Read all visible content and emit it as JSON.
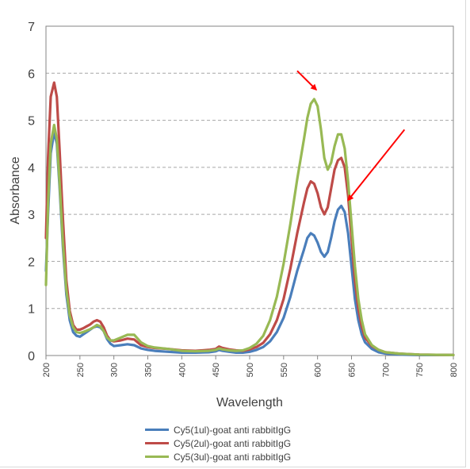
{
  "chart_data": {
    "type": "line",
    "title": "",
    "xlabel": "Wavelength",
    "ylabel": "Absorbance",
    "xlim": [
      200,
      800
    ],
    "ylim": [
      0,
      7
    ],
    "xticks": [
      200,
      250,
      300,
      350,
      400,
      450,
      500,
      550,
      600,
      650,
      700,
      750,
      800
    ],
    "yticks": [
      0,
      1,
      2,
      3,
      4,
      5,
      6,
      7
    ],
    "grid": "horizontal-dashed",
    "legend_position": "bottom",
    "series": [
      {
        "name": "Cy5(1ul)-goat anti rabbitIgG",
        "color": "#4a7ebb",
        "points": [
          [
            200,
            1.8
          ],
          [
            203,
            3.0
          ],
          [
            207,
            4.3
          ],
          [
            212,
            4.75
          ],
          [
            216,
            4.5
          ],
          [
            220,
            3.6
          ],
          [
            225,
            2.3
          ],
          [
            230,
            1.3
          ],
          [
            235,
            0.75
          ],
          [
            240,
            0.5
          ],
          [
            245,
            0.42
          ],
          [
            250,
            0.4
          ],
          [
            255,
            0.45
          ],
          [
            260,
            0.5
          ],
          [
            265,
            0.55
          ],
          [
            270,
            0.6
          ],
          [
            275,
            0.62
          ],
          [
            280,
            0.6
          ],
          [
            285,
            0.52
          ],
          [
            290,
            0.35
          ],
          [
            295,
            0.25
          ],
          [
            300,
            0.2
          ],
          [
            310,
            0.22
          ],
          [
            320,
            0.24
          ],
          [
            330,
            0.22
          ],
          [
            340,
            0.15
          ],
          [
            350,
            0.12
          ],
          [
            360,
            0.1
          ],
          [
            380,
            0.08
          ],
          [
            400,
            0.06
          ],
          [
            420,
            0.06
          ],
          [
            440,
            0.07
          ],
          [
            450,
            0.09
          ],
          [
            455,
            0.12
          ],
          [
            460,
            0.1
          ],
          [
            470,
            0.08
          ],
          [
            480,
            0.06
          ],
          [
            490,
            0.06
          ],
          [
            500,
            0.08
          ],
          [
            510,
            0.12
          ],
          [
            520,
            0.18
          ],
          [
            530,
            0.3
          ],
          [
            540,
            0.5
          ],
          [
            550,
            0.8
          ],
          [
            560,
            1.25
          ],
          [
            570,
            1.8
          ],
          [
            580,
            2.25
          ],
          [
            585,
            2.5
          ],
          [
            590,
            2.6
          ],
          [
            595,
            2.55
          ],
          [
            600,
            2.4
          ],
          [
            605,
            2.2
          ],
          [
            610,
            2.1
          ],
          [
            615,
            2.2
          ],
          [
            620,
            2.5
          ],
          [
            625,
            2.85
          ],
          [
            630,
            3.1
          ],
          [
            635,
            3.18
          ],
          [
            640,
            3.05
          ],
          [
            645,
            2.6
          ],
          [
            650,
            1.9
          ],
          [
            655,
            1.2
          ],
          [
            660,
            0.75
          ],
          [
            665,
            0.45
          ],
          [
            670,
            0.28
          ],
          [
            680,
            0.14
          ],
          [
            690,
            0.07
          ],
          [
            700,
            0.04
          ],
          [
            720,
            0.02
          ],
          [
            750,
            0.01
          ],
          [
            800,
            0.01
          ]
        ]
      },
      {
        "name": "Cy5(2ul)-goat anti rabbitIgG",
        "color": "#be4b48",
        "points": [
          [
            200,
            2.5
          ],
          [
            203,
            4.2
          ],
          [
            207,
            5.5
          ],
          [
            212,
            5.8
          ],
          [
            216,
            5.5
          ],
          [
            220,
            4.4
          ],
          [
            225,
            2.9
          ],
          [
            230,
            1.6
          ],
          [
            235,
            0.95
          ],
          [
            240,
            0.65
          ],
          [
            245,
            0.55
          ],
          [
            250,
            0.55
          ],
          [
            255,
            0.58
          ],
          [
            260,
            0.62
          ],
          [
            265,
            0.66
          ],
          [
            270,
            0.72
          ],
          [
            275,
            0.75
          ],
          [
            280,
            0.72
          ],
          [
            285,
            0.6
          ],
          [
            290,
            0.42
          ],
          [
            295,
            0.32
          ],
          [
            300,
            0.3
          ],
          [
            310,
            0.32
          ],
          [
            320,
            0.36
          ],
          [
            330,
            0.34
          ],
          [
            340,
            0.22
          ],
          [
            350,
            0.18
          ],
          [
            360,
            0.16
          ],
          [
            380,
            0.14
          ],
          [
            400,
            0.11
          ],
          [
            420,
            0.1
          ],
          [
            440,
            0.12
          ],
          [
            450,
            0.14
          ],
          [
            455,
            0.19
          ],
          [
            460,
            0.16
          ],
          [
            470,
            0.13
          ],
          [
            480,
            0.11
          ],
          [
            490,
            0.1
          ],
          [
            500,
            0.13
          ],
          [
            510,
            0.18
          ],
          [
            520,
            0.27
          ],
          [
            530,
            0.45
          ],
          [
            540,
            0.75
          ],
          [
            550,
            1.2
          ],
          [
            560,
            1.85
          ],
          [
            570,
            2.6
          ],
          [
            580,
            3.25
          ],
          [
            585,
            3.55
          ],
          [
            590,
            3.7
          ],
          [
            595,
            3.65
          ],
          [
            600,
            3.45
          ],
          [
            605,
            3.15
          ],
          [
            610,
            3.0
          ],
          [
            615,
            3.15
          ],
          [
            620,
            3.55
          ],
          [
            625,
            3.95
          ],
          [
            630,
            4.15
          ],
          [
            635,
            4.2
          ],
          [
            640,
            4.0
          ],
          [
            645,
            3.4
          ],
          [
            650,
            2.5
          ],
          [
            655,
            1.6
          ],
          [
            660,
            1.0
          ],
          [
            665,
            0.62
          ],
          [
            670,
            0.38
          ],
          [
            680,
            0.2
          ],
          [
            690,
            0.12
          ],
          [
            700,
            0.07
          ],
          [
            720,
            0.04
          ],
          [
            750,
            0.02
          ],
          [
            800,
            0.01
          ]
        ]
      },
      {
        "name": "Cy5(3ul)-goat anti rabbitIgG",
        "color": "#98b954",
        "points": [
          [
            200,
            1.5
          ],
          [
            203,
            3.2
          ],
          [
            207,
            4.5
          ],
          [
            212,
            4.9
          ],
          [
            216,
            4.6
          ],
          [
            220,
            3.7
          ],
          [
            225,
            2.4
          ],
          [
            230,
            1.4
          ],
          [
            235,
            0.85
          ],
          [
            240,
            0.6
          ],
          [
            245,
            0.5
          ],
          [
            250,
            0.48
          ],
          [
            255,
            0.5
          ],
          [
            260,
            0.53
          ],
          [
            265,
            0.56
          ],
          [
            270,
            0.6
          ],
          [
            275,
            0.65
          ],
          [
            280,
            0.62
          ],
          [
            285,
            0.52
          ],
          [
            290,
            0.38
          ],
          [
            295,
            0.32
          ],
          [
            300,
            0.32
          ],
          [
            310,
            0.38
          ],
          [
            320,
            0.44
          ],
          [
            330,
            0.44
          ],
          [
            340,
            0.28
          ],
          [
            350,
            0.2
          ],
          [
            360,
            0.17
          ],
          [
            380,
            0.14
          ],
          [
            400,
            0.1
          ],
          [
            420,
            0.09
          ],
          [
            440,
            0.1
          ],
          [
            450,
            0.12
          ],
          [
            455,
            0.15
          ],
          [
            460,
            0.13
          ],
          [
            470,
            0.11
          ],
          [
            480,
            0.1
          ],
          [
            490,
            0.11
          ],
          [
            500,
            0.16
          ],
          [
            510,
            0.25
          ],
          [
            520,
            0.42
          ],
          [
            530,
            0.75
          ],
          [
            540,
            1.25
          ],
          [
            550,
            1.95
          ],
          [
            560,
            2.8
          ],
          [
            570,
            3.75
          ],
          [
            580,
            4.6
          ],
          [
            585,
            5.05
          ],
          [
            590,
            5.35
          ],
          [
            595,
            5.45
          ],
          [
            600,
            5.3
          ],
          [
            605,
            4.8
          ],
          [
            610,
            4.2
          ],
          [
            615,
            3.95
          ],
          [
            620,
            4.1
          ],
          [
            625,
            4.45
          ],
          [
            630,
            4.7
          ],
          [
            635,
            4.7
          ],
          [
            640,
            4.4
          ],
          [
            645,
            3.7
          ],
          [
            650,
            2.8
          ],
          [
            655,
            1.9
          ],
          [
            660,
            1.2
          ],
          [
            665,
            0.75
          ],
          [
            670,
            0.45
          ],
          [
            680,
            0.22
          ],
          [
            690,
            0.12
          ],
          [
            700,
            0.07
          ],
          [
            720,
            0.04
          ],
          [
            750,
            0.02
          ],
          [
            800,
            0.01
          ]
        ]
      }
    ],
    "annotations": [
      {
        "type": "arrow",
        "color": "#ff0000",
        "from": [
          570,
          6.05
        ],
        "to": [
          598,
          5.65
        ]
      },
      {
        "type": "arrow",
        "color": "#ff0000",
        "from": [
          728,
          4.8
        ],
        "to": [
          645,
          3.3
        ]
      }
    ]
  }
}
